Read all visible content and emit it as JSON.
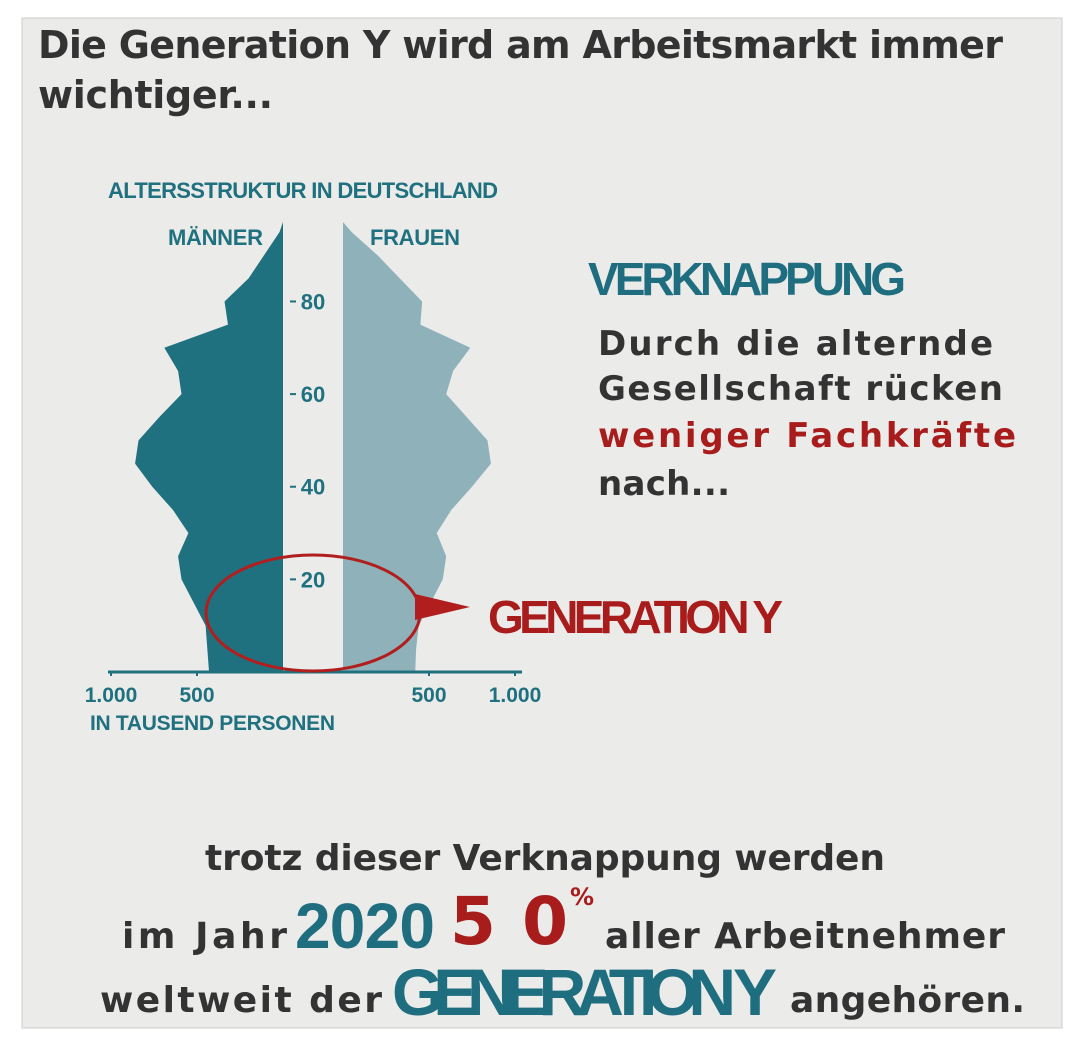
{
  "title": [
    "Die Generation Y wird am Arbeitsmarkt immer",
    "wichtiger..."
  ],
  "chart_data": {
    "type": "pyramid",
    "title": "ALTERSSTRUKTUR IN DEUTSCHLAND",
    "x_label": "IN TAUSEND PERSONEN",
    "ages": [
      0,
      5,
      10,
      15,
      20,
      25,
      30,
      35,
      40,
      45,
      50,
      55,
      60,
      65,
      70,
      75,
      80,
      85,
      90,
      95
    ],
    "series": [
      {
        "name": "MÄNNER",
        "color": "#1f7180",
        "values": [
          430,
          440,
          450,
          520,
          590,
          610,
          550,
          640,
          760,
          860,
          840,
          720,
          590,
          610,
          690,
          320,
          340,
          200,
          110,
          20
        ]
      },
      {
        "name": "FRAUEN",
        "color": "#8fb2ba",
        "values": [
          420,
          425,
          440,
          510,
          580,
          600,
          545,
          630,
          750,
          860,
          840,
          720,
          600,
          640,
          740,
          450,
          460,
          330,
          200,
          50
        ]
      }
    ],
    "ylim": [
      0,
      95
    ],
    "yticks": [
      20,
      40,
      60,
      80
    ],
    "xlim": [
      0,
      1000
    ],
    "xticks_men": [
      {
        "value": 1000,
        "label": "1.000"
      },
      500
    ],
    "xticks_women": [
      500,
      {
        "value": 1000,
        "label": "1.000"
      }
    ],
    "annotation": "GENERATION Y"
  },
  "verknappung": {
    "heading": "VERKNAPPUNG",
    "lines": [
      "Durch die alternde",
      "Gesellschaft rücken",
      "weniger Fachkräfte",
      "nach..."
    ]
  },
  "footer": {
    "line1": "trotz dieser Verknappung werden",
    "line2": [
      "im Jahr",
      "2020",
      "50",
      "%",
      "aller Arbeitnehmer"
    ],
    "line3": [
      "weltweit der",
      "GENERATION Y",
      "angehören."
    ]
  }
}
